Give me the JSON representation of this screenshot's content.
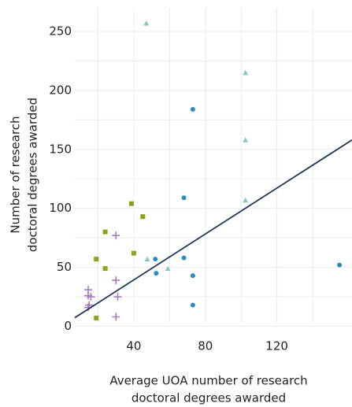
{
  "chart_data": {
    "type": "scatter",
    "x_label": [
      "Average UOA number of research",
      "doctoral degrees awarded"
    ],
    "y_label": [
      "Number of research",
      "doctoral degrees awarded"
    ],
    "xlim": [
      7,
      162
    ],
    "ylim": [
      3,
      270
    ],
    "xticks": [
      40,
      80,
      120
    ],
    "yticks": [
      0,
      50,
      100,
      150,
      200,
      250
    ],
    "x_minor_grid": [
      20,
      60,
      100,
      140
    ],
    "y_minor_grid": [
      25,
      75,
      125,
      175,
      225
    ],
    "grid": true,
    "series": [
      {
        "color": "#86c9c9",
        "marker": "triangle",
        "x": [
          47,
          102.4,
          102.4,
          102.4,
          47.5,
          59
        ],
        "values": [
          257,
          215,
          158,
          107,
          57,
          49
        ]
      },
      {
        "color": "#2b8cc4",
        "marker": "circle",
        "x": [
          73,
          68,
          52,
          52.5,
          68,
          73,
          73,
          155
        ],
        "values": [
          184,
          109,
          57,
          45,
          58,
          43,
          18,
          52
        ]
      },
      {
        "color": "#8aa51e",
        "marker": "square",
        "x": [
          38.7,
          45,
          24,
          40,
          19,
          24,
          19
        ],
        "values": [
          104,
          93,
          80,
          62,
          57,
          49,
          7
        ]
      },
      {
        "color": "#a57cbf",
        "marker": "plus",
        "x": [
          30,
          30,
          31,
          30,
          14.5,
          14.5,
          16,
          14.5,
          15
        ],
        "values": [
          77,
          39,
          25,
          8,
          31,
          26,
          25,
          16,
          18
        ]
      }
    ],
    "trendline": {
      "color": "#1b3a5c",
      "x": [
        7,
        162
      ],
      "values": [
        7.3,
        158
      ]
    }
  }
}
